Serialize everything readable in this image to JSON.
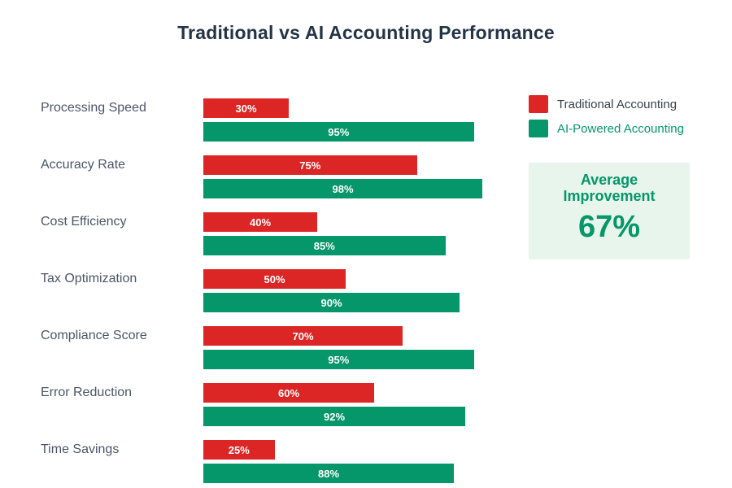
{
  "title": "Traditional vs AI Accounting Performance",
  "colors": {
    "traditional_red": "#dc2626",
    "ai_green": "#059669",
    "title_text": "#243447",
    "category_text": "#4a5568",
    "bar_value_text": "#ffffff",
    "summary_bg": "#e7f5ec",
    "summary_text": "#059669"
  },
  "legend": {
    "items": [
      {
        "label": "Traditional Accounting",
        "color": "#dc2626"
      },
      {
        "label": "AI-Powered Accounting",
        "color": "#059669"
      }
    ]
  },
  "summary": {
    "label": "Average Improvement",
    "value": "67%"
  },
  "chart_data": {
    "type": "bar",
    "orientation": "horizontal",
    "title": "Traditional vs AI Accounting Performance",
    "categories": [
      "Processing Speed",
      "Accuracy Rate",
      "Cost Efficiency",
      "Tax Optimization",
      "Compliance Score",
      "Error Reduction",
      "Time Savings"
    ],
    "series": [
      {
        "name": "Traditional Accounting",
        "color": "#dc2626",
        "values": [
          30,
          75,
          40,
          50,
          70,
          60,
          25
        ],
        "labels": [
          "30%",
          "75%",
          "40%",
          "50%",
          "70%",
          "60%",
          "25%"
        ]
      },
      {
        "name": "AI-Powered Accounting",
        "color": "#059669",
        "values": [
          95,
          98,
          85,
          90,
          95,
          92,
          88
        ],
        "labels": [
          "95%",
          "98%",
          "85%",
          "90%",
          "95%",
          "92%",
          "88%"
        ]
      }
    ],
    "xlim": [
      0,
      100
    ],
    "unit": "%",
    "grid": false,
    "legend_position": "top-right",
    "value_labels": "inside-center"
  }
}
